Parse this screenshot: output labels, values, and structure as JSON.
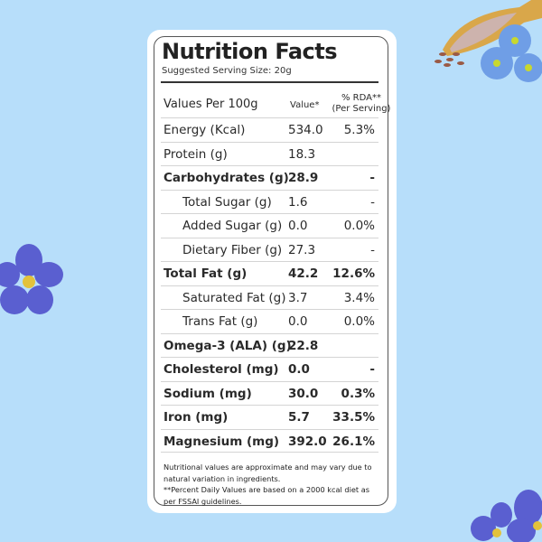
{
  "title": "Nutrition Facts",
  "serving_size": "Suggested Serving Size: 20g",
  "header": {
    "label": "Values Per 100g",
    "value": "Value*",
    "rda_line1": "% RDA**",
    "rda_line2": "(Per Serving)"
  },
  "rows": [
    {
      "name": "Energy (Kcal)",
      "value": "534.0",
      "rda": "5.3%",
      "bold": false,
      "sub": false
    },
    {
      "name": "Protein",
      "unit": " (g)",
      "value": "18.3",
      "rda": "",
      "bold": false,
      "sub": false
    },
    {
      "name": "Carbohydrates (g)",
      "value": "28.9",
      "rda": "-",
      "bold": true,
      "sub": false
    },
    {
      "name": "Total Sugar",
      "unit": " (g)",
      "value": "1.6",
      "rda": "-",
      "bold": false,
      "sub": true
    },
    {
      "name": "Added Sugar (g)",
      "value": "0.0",
      "rda": "0.0%",
      "bold": false,
      "sub": true
    },
    {
      "name": "Dietary Fiber (g)",
      "value": "27.3",
      "rda": "-",
      "bold": false,
      "sub": true
    },
    {
      "name": "Total Fat (g)",
      "value": "42.2",
      "rda": "12.6%",
      "bold": true,
      "sub": false
    },
    {
      "name": "Saturated Fat (g)",
      "value": "3.7",
      "rda": "3.4%",
      "bold": false,
      "sub": true
    },
    {
      "name": "Trans Fat (g)",
      "value": "0.0",
      "rda": "0.0%",
      "bold": false,
      "sub": true
    },
    {
      "name": "Omega-3 (ALA) (g)",
      "value": "22.8",
      "rda": "",
      "bold": true,
      "sub": false
    },
    {
      "name": "Cholesterol (mg)",
      "value": "0.0",
      "rda": "-",
      "bold": true,
      "sub": false
    },
    {
      "name": "Sodium (mg)",
      "value": "30.0",
      "rda": "0.3%",
      "bold": true,
      "sub": false
    },
    {
      "name": "Iron (mg)",
      "value": "5.7",
      "rda": "33.5%",
      "bold": true,
      "sub": false
    },
    {
      "name": "Magnesium (mg)",
      "value": "392.0",
      "rda": "26.1%",
      "bold": true,
      "sub": false
    }
  ],
  "footnotes": [
    "Nutritional values are approximate and may vary due to natural variation in ingredients.",
    "**Percent Daily Values are based on a 2000 kcal diet as per FSSAI guidelines."
  ],
  "colors": {
    "background": "#b7defa",
    "flower": "#5a5fd0",
    "flower_center": "#e3c23b"
  }
}
